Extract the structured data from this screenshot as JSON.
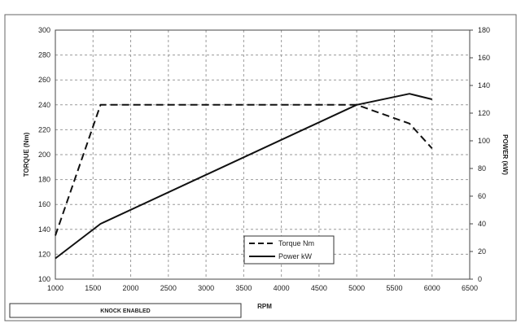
{
  "chart_data": {
    "type": "line",
    "xlabel": "RPM",
    "ylabel_left": "TORQUE (Nm)",
    "ylabel_right": "POWER (kW)",
    "xlim": [
      1000,
      6500
    ],
    "ylim_left": [
      100,
      300
    ],
    "ylim_right": [
      0,
      180
    ],
    "x_ticks": [
      "1000",
      "1500",
      "2000",
      "2500",
      "3000",
      "3500",
      "4000",
      "4500",
      "5000",
      "5500",
      "6000",
      "6500"
    ],
    "y_left_ticks": [
      "100",
      "120",
      "140",
      "160",
      "180",
      "200",
      "220",
      "240",
      "260",
      "280",
      "300"
    ],
    "y_right_ticks": [
      "0",
      "20",
      "40",
      "60",
      "80",
      "100",
      "120",
      "140",
      "160",
      "180"
    ],
    "grid": true,
    "legend_placement": "bottom-center",
    "series": [
      {
        "name": "Torque Nm",
        "axis": "left",
        "style": "dashed",
        "x": [
          1000,
          1600,
          2000,
          3000,
          4000,
          5000,
          5700,
          6000
        ],
        "y": [
          135,
          240,
          240,
          240,
          240,
          240,
          225,
          205
        ]
      },
      {
        "name": "Power kW",
        "axis": "right",
        "style": "solid",
        "x": [
          1000,
          1600,
          5000,
          5700,
          6000
        ],
        "y": [
          15,
          40,
          126,
          134,
          130
        ]
      }
    ]
  },
  "footer": {
    "status_label": "KNOCK ENABLED"
  },
  "colors": {
    "line": "#111111",
    "grid": "#9a9a9a",
    "frame": "#444444"
  }
}
